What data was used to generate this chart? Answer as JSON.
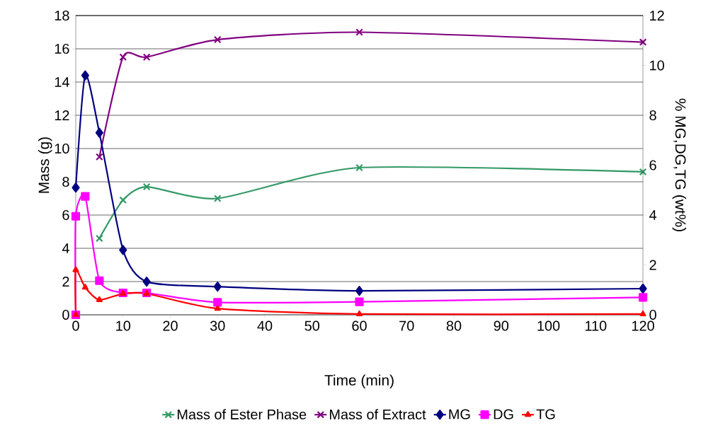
{
  "chart_data": {
    "type": "line",
    "xlabel": "Time (min)",
    "ylabel": "Mass (g)",
    "y2label": "% MG,DG,TG (wt%)",
    "xlim": [
      0,
      120
    ],
    "xticks": [
      0,
      10,
      20,
      30,
      40,
      50,
      60,
      70,
      80,
      90,
      100,
      110,
      120
    ],
    "ylim": [
      0,
      18
    ],
    "yticks": [
      0,
      2,
      4,
      6,
      8,
      10,
      12,
      14,
      16,
      18
    ],
    "y2lim": [
      0,
      12
    ],
    "y2ticks": [
      0,
      2,
      4,
      6,
      8,
      10,
      12
    ],
    "grid": "y",
    "legend": "bottom",
    "line_style": "solid",
    "series": [
      {
        "name": "Mass of Ester Phase",
        "color": "#339966",
        "marker": "cross",
        "x": [
          5,
          10,
          15,
          30,
          60,
          120
        ],
        "values": [
          4.6,
          6.9,
          7.7,
          7.0,
          8.85,
          8.6
        ]
      },
      {
        "name": "Mass of Extract",
        "color": "#800080",
        "marker": "cross",
        "x": [
          5,
          10,
          15,
          30,
          60,
          120
        ],
        "values": [
          9.5,
          15.5,
          15.5,
          16.55,
          17.0,
          16.4
        ]
      },
      {
        "name": "MG",
        "color": "#000080",
        "marker": "diamond",
        "axis": "y2",
        "x": [
          0,
          2,
          5,
          10,
          15,
          30,
          60,
          120
        ],
        "values": [
          5.1,
          9.6,
          7.3,
          2.6,
          1.33,
          1.13,
          0.96,
          1.05
        ]
      },
      {
        "name": "DG",
        "color": "#ff00ff",
        "marker": "square",
        "axis": "y2",
        "x": [
          0,
          0,
          2,
          5,
          10,
          15,
          30,
          60,
          120
        ],
        "values": [
          0,
          3.95,
          4.75,
          1.37,
          0.88,
          0.88,
          0.5,
          0.52,
          0.7
        ]
      },
      {
        "name": "TG",
        "color": "#ff0000",
        "marker": "triangle",
        "axis": "y2",
        "x": [
          0,
          0,
          2,
          5,
          10,
          15,
          30,
          60,
          120
        ],
        "values": [
          0,
          1.8,
          1.1,
          0.6,
          0.85,
          0.85,
          0.25,
          0.03,
          0.03
        ]
      }
    ]
  }
}
